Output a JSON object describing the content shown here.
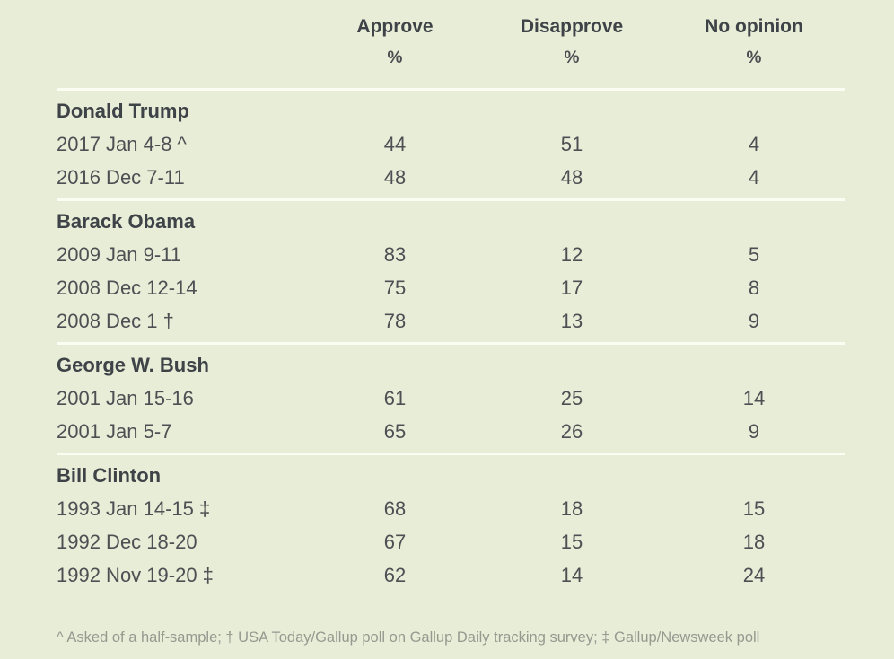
{
  "chart_data": {
    "type": "table",
    "columns": [
      "Approve",
      "Disapprove",
      "No opinion"
    ],
    "units": [
      "%",
      "%",
      "%"
    ],
    "sections": [
      {
        "name": "Donald Trump",
        "rows": [
          {
            "label": "2017 Jan 4-8 ^",
            "approve": 44,
            "disapprove": 51,
            "no_opinion": 4
          },
          {
            "label": "2016 Dec 7-11",
            "approve": 48,
            "disapprove": 48,
            "no_opinion": 4
          }
        ]
      },
      {
        "name": "Barack Obama",
        "rows": [
          {
            "label": "2009 Jan 9-11",
            "approve": 83,
            "disapprove": 12,
            "no_opinion": 5
          },
          {
            "label": "2008 Dec 12-14",
            "approve": 75,
            "disapprove": 17,
            "no_opinion": 8
          },
          {
            "label": "2008 Dec 1 †",
            "approve": 78,
            "disapprove": 13,
            "no_opinion": 9
          }
        ]
      },
      {
        "name": "George W. Bush",
        "rows": [
          {
            "label": "2001 Jan 15-16",
            "approve": 61,
            "disapprove": 25,
            "no_opinion": 14
          },
          {
            "label": "2001 Jan 5-7",
            "approve": 65,
            "disapprove": 26,
            "no_opinion": 9
          }
        ]
      },
      {
        "name": "Bill Clinton",
        "rows": [
          {
            "label": "1993 Jan 14-15 ‡",
            "approve": 68,
            "disapprove": 18,
            "no_opinion": 15
          },
          {
            "label": "1992 Dec 18-20",
            "approve": 67,
            "disapprove": 15,
            "no_opinion": 18
          },
          {
            "label": "1992 Nov 19-20 ‡",
            "approve": 62,
            "disapprove": 14,
            "no_opinion": 24
          }
        ]
      }
    ],
    "footnote": "^ Asked of a half-sample; † USA Today/Gallup poll on Gallup Daily tracking survey; ‡ Gallup/Newsweek poll",
    "layout": {
      "legend": "none",
      "grid": "white section divider lines",
      "background": "#e8edd8"
    }
  },
  "colors": {
    "background": "#e8edd8",
    "divider": "#fbfdf3",
    "heading_text": "#3e4347",
    "body_text": "#4c5053",
    "footnote_text": "#97998f"
  }
}
